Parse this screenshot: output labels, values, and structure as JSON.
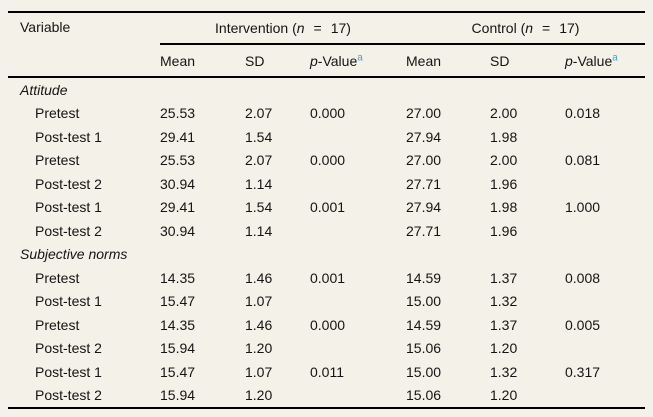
{
  "page": {
    "background_color": "#f4f1e8",
    "rule_color": "#000000",
    "footnote_marker_color": "#41a0d8"
  },
  "table": {
    "variable_header": "Variable",
    "groups": [
      {
        "pre": "Intervention (",
        "n": "n",
        "eq": "=",
        "count": "17)"
      },
      {
        "pre": "Control (",
        "n": "n",
        "eq": "=",
        "count": "17)"
      }
    ],
    "subheaders": {
      "mean": "Mean",
      "sd": "SD",
      "p": "p",
      "p_rest": "-Value",
      "p_sup": "a"
    },
    "rows": [
      {
        "label": "Attitude",
        "section": true,
        "cells": [
          "",
          "",
          "",
          "",
          "",
          ""
        ]
      },
      {
        "label": "Pretest",
        "section": false,
        "cells": [
          "25.53",
          "2.07",
          "0.000",
          "27.00",
          "2.00",
          "0.018"
        ]
      },
      {
        "label": "Post-test 1",
        "section": false,
        "cells": [
          "29.41",
          "1.54",
          "",
          "27.94",
          "1.98",
          ""
        ]
      },
      {
        "label": "Pretest",
        "section": false,
        "cells": [
          "25.53",
          "2.07",
          "0.000",
          "27.00",
          "2.00",
          "0.081"
        ]
      },
      {
        "label": "Post-test 2",
        "section": false,
        "cells": [
          "30.94",
          "1.14",
          "",
          "27.71",
          "1.96",
          ""
        ]
      },
      {
        "label": "Post-test 1",
        "section": false,
        "cells": [
          "29.41",
          "1.54",
          "0.001",
          "27.94",
          "1.98",
          "1.000"
        ]
      },
      {
        "label": "Post-test 2",
        "section": false,
        "cells": [
          "30.94",
          "1.14",
          "",
          "27.71",
          "1.96",
          ""
        ]
      },
      {
        "label": "Subjective norms",
        "section": true,
        "cells": [
          "",
          "",
          "",
          "",
          "",
          ""
        ]
      },
      {
        "label": "Pretest",
        "section": false,
        "cells": [
          "14.35",
          "1.46",
          "0.001",
          "14.59",
          "1.37",
          "0.008"
        ]
      },
      {
        "label": "Post-test 1",
        "section": false,
        "cells": [
          "15.47",
          "1.07",
          "",
          "15.00",
          "1.32",
          ""
        ]
      },
      {
        "label": "Pretest",
        "section": false,
        "cells": [
          "14.35",
          "1.46",
          "0.000",
          "14.59",
          "1.37",
          "0.005"
        ]
      },
      {
        "label": "Post-test 2",
        "section": false,
        "cells": [
          "15.94",
          "1.20",
          "",
          "15.06",
          "1.20",
          ""
        ]
      },
      {
        "label": "Post-test 1",
        "section": false,
        "cells": [
          "15.47",
          "1.07",
          "0.011",
          "15.00",
          "1.32",
          "0.317"
        ]
      },
      {
        "label": "Post-test 2",
        "section": false,
        "cells": [
          "15.94",
          "1.20",
          "",
          "15.06",
          "1.20",
          ""
        ]
      }
    ]
  }
}
